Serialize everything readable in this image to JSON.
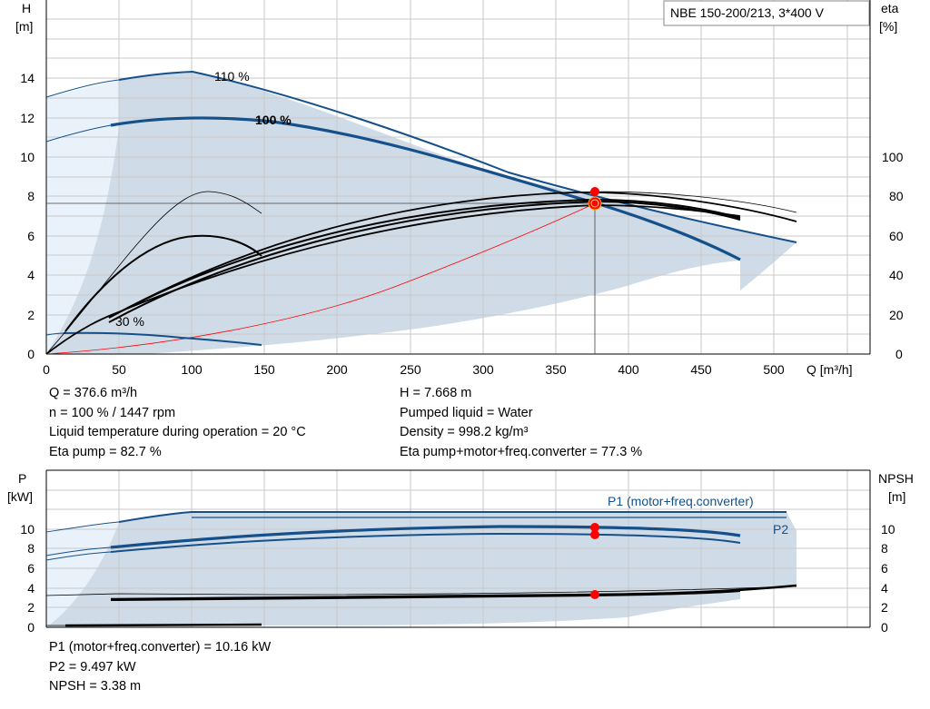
{
  "pump_model": "NBE 150-200/213, 3*400 V",
  "top_chart": {
    "y_left_label": [
      "H",
      "[m]"
    ],
    "y_right_label": [
      "eta",
      "[%]"
    ],
    "x_label": "Q [m³/h]"
  },
  "bottom_chart": {
    "y_left_label": [
      "P",
      "[kW]"
    ],
    "y_right_label": [
      "NPSH",
      "[m]"
    ],
    "series_labels": {
      "p1": "P1 (motor+freq.converter)",
      "p2": "P2"
    }
  },
  "operating_point_info": {
    "left": [
      "Q = 376.6 m³/h",
      "n = 100 % / 1447 rpm",
      "Liquid temperature during operation = 20 °C",
      "Eta pump = 82.7 %"
    ],
    "right": [
      "H = 7.668 m",
      "Pumped liquid = Water",
      "Density = 998.2 kg/m³",
      "Eta pump+motor+freq.converter = 77.3 %"
    ]
  },
  "power_info": [
    "P1 (motor+freq.converter) = 10.16 kW",
    "P2 = 9.497 kW",
    "NPSH = 3.38 m"
  ],
  "colors": {
    "curve_blue": "#15508a",
    "shade": "#cfdbe7",
    "shade_light": "#e9f2fb",
    "grid": "#c8c8c8",
    "marker": "#ff0000"
  },
  "chart_data": [
    {
      "type": "line",
      "title": "NBE 150-200/213, 3*400 V",
      "xlabel": "Q [m³/h]",
      "ylabel": "H [m]",
      "y2label": "eta [%]",
      "xlim": [
        0,
        550
      ],
      "ylim": [
        0,
        16
      ],
      "y2lim": [
        0,
        160
      ],
      "x_ticks": [
        0,
        50,
        100,
        150,
        200,
        250,
        300,
        350,
        400,
        450,
        500
      ],
      "y_ticks": [
        0,
        2,
        4,
        6,
        8,
        10,
        12,
        14
      ],
      "y2_ticks": [
        0,
        20,
        40,
        60,
        80,
        100
      ],
      "grid": true,
      "series": [
        {
          "name": "110 %",
          "axis": "H",
          "x": [
            0,
            50,
            100,
            150,
            200,
            250,
            300,
            350,
            400,
            450,
            515
          ],
          "y": [
            13.0,
            13.9,
            14.3,
            13.6,
            12.8,
            11.8,
            10.7,
            9.5,
            8.2,
            7.0,
            5.6
          ]
        },
        {
          "name": "100 %",
          "axis": "H",
          "x": [
            0,
            50,
            100,
            150,
            200,
            250,
            300,
            350,
            400,
            450,
            476
          ],
          "y": [
            10.8,
            11.6,
            11.9,
            11.8,
            11.3,
            10.5,
            9.4,
            8.1,
            6.8,
            5.5,
            4.8
          ]
        },
        {
          "name": "30 %",
          "axis": "H",
          "x": [
            0,
            50,
            100,
            148
          ],
          "y": [
            1.1,
            1.05,
            0.8,
            0.45
          ]
        },
        {
          "axis": "H",
          "x": [
            0,
            100,
            200,
            300,
            376.6
          ],
          "y": [
            0,
            0.55,
            2.1,
            4.8,
            7.668
          ]
        },
        {
          "axis": "eta",
          "x": [
            0,
            50,
            100,
            150,
            200,
            250,
            300,
            350,
            400,
            450,
            515
          ],
          "y": [
            0,
            24,
            42,
            55,
            65,
            72,
            77,
            80,
            80,
            77,
            67
          ]
        },
        {
          "axis": "eta",
          "x": [
            0,
            50,
            100,
            150,
            200,
            250,
            300,
            350,
            400,
            450,
            476
          ],
          "y": [
            0,
            28,
            48,
            61,
            70,
            76,
            80,
            82.7,
            81.5,
            76,
            69
          ]
        },
        {
          "axis": "eta",
          "x": [
            0,
            20,
            50,
            80,
            110,
            140,
            148
          ],
          "y": [
            0,
            30,
            56,
            72,
            80,
            76,
            72
          ]
        }
      ],
      "operating_point": {
        "Q": 376.6,
        "H": 7.668,
        "eta_pump": 82.7,
        "eta_total": 77.3
      }
    },
    {
      "type": "line",
      "ylabel": "P [kW]",
      "y2label": "NPSH [m]",
      "xlim": [
        0,
        550
      ],
      "ylim": [
        0,
        13
      ],
      "y_ticks": [
        0,
        2,
        4,
        6,
        8,
        10
      ],
      "y2_ticks": [
        0,
        2,
        4,
        6,
        8,
        10
      ],
      "grid": true,
      "series": [
        {
          "name": "P1 (motor+freq.converter)",
          "axis": "P",
          "x": [
            0,
            50,
            100,
            200,
            300,
            400,
            476
          ],
          "y": [
            8.3,
            9.3,
            9.7,
            10.2,
            10.3,
            10.2,
            9.3
          ]
        },
        {
          "name": "P2",
          "axis": "P",
          "x": [
            0,
            50,
            100,
            200,
            300,
            400,
            476
          ],
          "y": [
            7.0,
            8.2,
            9.0,
            9.7,
            9.8,
            9.6,
            8.6
          ]
        },
        {
          "axis": "NPSH",
          "x": [
            0,
            50,
            150,
            300,
            376.6,
            476,
            515
          ],
          "y": [
            3.0,
            3.0,
            3.05,
            3.25,
            3.38,
            3.7,
            4.3
          ]
        }
      ],
      "operating_point": {
        "P1": 10.16,
        "P2": 9.497,
        "NPSH": 3.38
      }
    }
  ]
}
